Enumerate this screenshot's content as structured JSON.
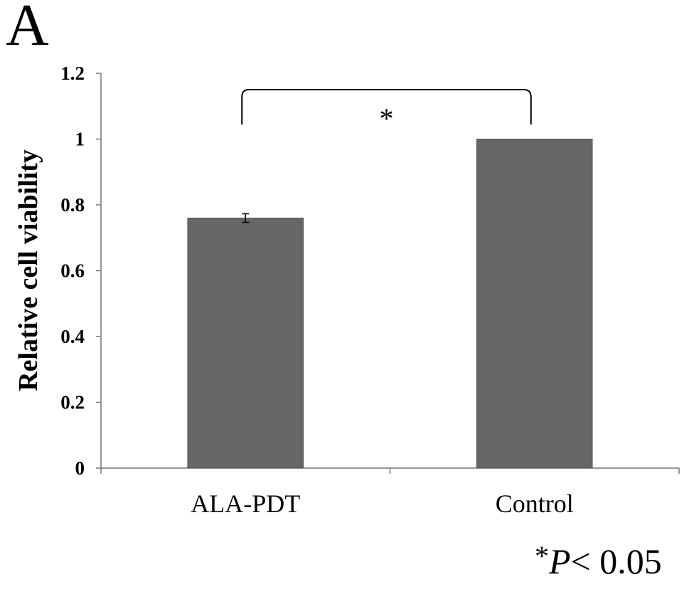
{
  "panel_label": "A",
  "footnote": {
    "star": "*",
    "p": "P",
    "rest": "< 0.05"
  },
  "chart_data": {
    "type": "bar",
    "categories": [
      "ALA-PDT",
      "Control"
    ],
    "values": [
      0.76,
      1.0
    ],
    "error": [
      0.013,
      0.0
    ],
    "ylabel": "Relative cell viability",
    "xlabel": "",
    "title": "",
    "ylim": [
      0,
      1.2
    ],
    "yticks": [
      "0",
      "0.2",
      "0.4",
      "0.6",
      "0.8",
      "1",
      "1.2"
    ],
    "ytick_values": [
      0,
      0.2,
      0.4,
      0.6,
      0.8,
      1.0,
      1.2
    ],
    "grid": false,
    "bar_color": "#666666",
    "significance": {
      "between": [
        "ALA-PDT",
        "Control"
      ],
      "marker": "*"
    }
  }
}
